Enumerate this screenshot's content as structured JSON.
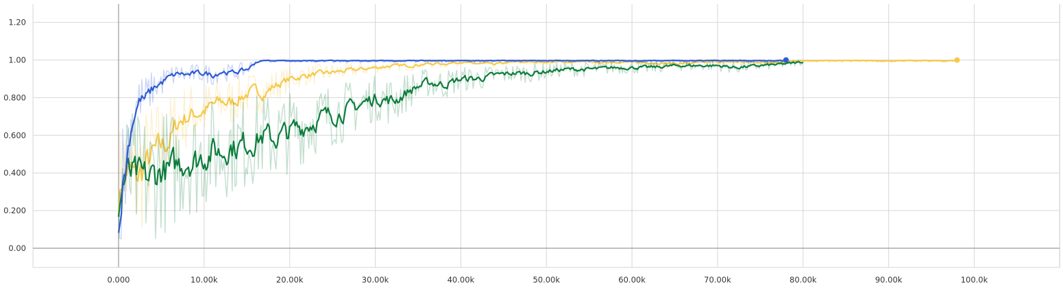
{
  "chart_data": {
    "type": "line",
    "title": "",
    "xlabel": "",
    "ylabel": "",
    "xlim": [
      -10000,
      110000
    ],
    "ylim": [
      -0.1,
      1.3
    ],
    "grid": true,
    "legend": "none",
    "x_ticks": [
      0,
      10000,
      20000,
      30000,
      40000,
      50000,
      60000,
      70000,
      80000,
      90000,
      100000
    ],
    "x_tick_labels": [
      "0.000",
      "10.00k",
      "20.00k",
      "30.00k",
      "40.00k",
      "50.00k",
      "60.00k",
      "70.00k",
      "80.00k",
      "90.00k",
      "100.0k"
    ],
    "y_ticks": [
      0,
      0.2,
      0.4,
      0.6,
      0.8,
      1.0,
      1.2
    ],
    "y_tick_labels": [
      "0.00",
      "0.200",
      "0.400",
      "0.600",
      "0.800",
      "1.00",
      "1.20"
    ],
    "raw_series_opacity": 0.25,
    "series": [
      {
        "color": "#f6c94c",
        "end_marker": true,
        "x": [
          0,
          400,
          1000,
          2000,
          3000,
          4000,
          5000,
          6000,
          7000,
          8000,
          9000,
          10000,
          11000,
          12000,
          13000,
          14000,
          15000,
          16000,
          17000,
          18000,
          19000,
          20000,
          22000,
          24000,
          26000,
          28000,
          30000,
          32000,
          34000,
          36000,
          38000,
          40000,
          42000,
          44000,
          46000,
          48000,
          50000,
          55000,
          60000,
          65000,
          70000,
          72000,
          75000,
          78000,
          80000,
          85000,
          90000,
          95000,
          98000
        ],
        "values": [
          0.2,
          0.38,
          0.42,
          0.36,
          0.43,
          0.5,
          0.54,
          0.58,
          0.68,
          0.7,
          0.72,
          0.73,
          0.76,
          0.78,
          0.77,
          0.8,
          0.82,
          0.84,
          0.82,
          0.86,
          0.88,
          0.9,
          0.92,
          0.93,
          0.94,
          0.95,
          0.96,
          0.97,
          0.97,
          0.98,
          0.98,
          0.99,
          0.98,
          0.98,
          0.99,
          0.99,
          0.99,
          0.99,
          0.99,
          0.98,
          0.99,
          0.99,
          0.99,
          0.99,
          1.0,
          1.0,
          1.0,
          1.0,
          1.0
        ]
      },
      {
        "color": "#0c7d3c",
        "end_marker": false,
        "x": [
          0,
          400,
          1000,
          2000,
          3000,
          4000,
          5000,
          6000,
          7000,
          8000,
          9000,
          10000,
          11000,
          12000,
          13000,
          14000,
          15000,
          16000,
          17000,
          18000,
          19000,
          20000,
          22000,
          24000,
          26000,
          28000,
          30000,
          32000,
          34000,
          36000,
          38000,
          40000,
          42000,
          44000,
          46000,
          48000,
          50000,
          52000,
          55000,
          58000,
          60000,
          62000,
          65000,
          68000,
          70000,
          72000,
          75000,
          78000,
          80000
        ],
        "values": [
          0.2,
          0.35,
          0.4,
          0.37,
          0.36,
          0.38,
          0.42,
          0.4,
          0.45,
          0.48,
          0.46,
          0.5,
          0.52,
          0.51,
          0.55,
          0.54,
          0.56,
          0.58,
          0.6,
          0.58,
          0.6,
          0.62,
          0.66,
          0.7,
          0.72,
          0.76,
          0.8,
          0.78,
          0.84,
          0.88,
          0.87,
          0.9,
          0.9,
          0.92,
          0.93,
          0.93,
          0.94,
          0.95,
          0.95,
          0.96,
          0.96,
          0.96,
          0.97,
          0.97,
          0.97,
          0.96,
          0.97,
          0.98,
          0.99
        ]
      },
      {
        "color": "#2f5bd3",
        "end_marker": true,
        "x": [
          0,
          400,
          800,
          1200,
          1600,
          2000,
          2500,
          3000,
          3500,
          4000,
          4500,
          5000,
          5500,
          6000,
          7000,
          8000,
          9000,
          10000,
          11000,
          12000,
          13000,
          14000,
          15000,
          16000,
          17000,
          18000,
          20000,
          25000,
          30000,
          40000,
          50000,
          60000,
          70000,
          78000
        ],
        "values": [
          0.06,
          0.35,
          0.45,
          0.6,
          0.7,
          0.75,
          0.8,
          0.79,
          0.82,
          0.85,
          0.87,
          0.88,
          0.9,
          0.91,
          0.93,
          0.92,
          0.93,
          0.93,
          0.92,
          0.94,
          0.93,
          0.94,
          0.95,
          0.99,
          1.0,
          1.0,
          1.0,
          1.0,
          1.0,
          1.0,
          1.0,
          1.0,
          1.0,
          1.0
        ]
      }
    ]
  }
}
